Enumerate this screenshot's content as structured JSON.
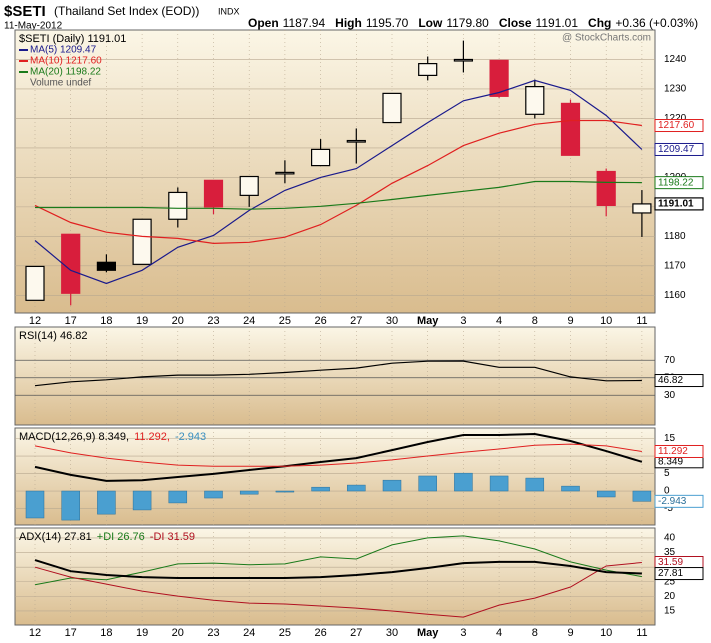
{
  "header": {
    "symbol": "$SETI",
    "title": "(Thailand Set Index (EOD))",
    "exchange": "INDX",
    "date": "11-May-2012",
    "quote": [
      {
        "label": "Open",
        "value": "1187.94"
      },
      {
        "label": "High",
        "value": "1195.70"
      },
      {
        "label": "Low",
        "value": "1179.80"
      },
      {
        "label": "Close",
        "value": "1191.01"
      },
      {
        "label": "Chg",
        "value": "+0.36 (+0.03%)"
      }
    ],
    "watermark": "@ StockCharts.com"
  },
  "categories": [
    "12",
    "17",
    "18",
    "19",
    "20",
    "23",
    "24",
    "25",
    "26",
    "27",
    "30",
    "May",
    "3",
    "4",
    "8",
    "9",
    "10",
    "11"
  ],
  "chart_data": [
    {
      "type": "candlestick",
      "legend_title": "$SETI (Daily) 1191.01",
      "volume_label": "Volume undef",
      "close_label": "1191.01",
      "up_color": "#000000",
      "down_color": "#d81e3c",
      "open": [
        1158.3,
        1180.7,
        1171.2,
        1170.5,
        1185.8,
        1199.0,
        1193.9,
        1201.7,
        1204.0,
        1212.5,
        1218.6,
        1234.6,
        1240.0,
        1239.7,
        1221.4,
        1225.1,
        1202.0,
        1187.94
      ],
      "high": [
        1169.8,
        1180.7,
        1173.9,
        1185.8,
        1196.6,
        1199.0,
        1200.3,
        1205.8,
        1213.0,
        1216.6,
        1228.5,
        1241.0,
        1246.4,
        1239.7,
        1233.2,
        1226.4,
        1203.0,
        1195.7
      ],
      "low": [
        1158.3,
        1156.6,
        1167.8,
        1170.5,
        1183.0,
        1187.5,
        1190.0,
        1198.0,
        1204.0,
        1204.7,
        1218.6,
        1232.9,
        1235.6,
        1227.0,
        1220.0,
        1207.5,
        1186.8,
        1179.8
      ],
      "close": [
        1169.8,
        1160.7,
        1168.5,
        1185.8,
        1194.9,
        1190.0,
        1200.3,
        1201.7,
        1209.5,
        1212.5,
        1228.5,
        1238.6,
        1240.0,
        1227.5,
        1230.8,
        1207.5,
        1190.5,
        1191.01
      ],
      "series": [
        {
          "name": "MA(5) 1209.47",
          "color": "#1a1a8c",
          "end_label": "1209.47",
          "values": [
            1178.6,
            1168.5,
            1164.0,
            1168.5,
            1176.3,
            1180.3,
            1188.8,
            1195.6,
            1200.0,
            1203.0,
            1210.8,
            1218.6,
            1226.0,
            1228.8,
            1232.9,
            1229.5,
            1221.0,
            1209.47
          ]
        },
        {
          "name": "MA(10) 1217.60",
          "color": "#e02020",
          "end_label": "1217.60",
          "values": [
            1190.5,
            1184.7,
            1181.4,
            1180.0,
            1179.3,
            1177.6,
            1178.0,
            1179.7,
            1184.0,
            1190.5,
            1198.0,
            1204.0,
            1210.8,
            1215.0,
            1218.0,
            1219.3,
            1219.3,
            1217.6
          ]
        },
        {
          "name": "MA(20) 1198.22",
          "color": "#1a7a1a",
          "end_label": "1198.22",
          "values": [
            1189.8,
            1189.8,
            1189.8,
            1189.8,
            1189.5,
            1189.5,
            1189.2,
            1189.5,
            1190.2,
            1191.2,
            1192.5,
            1193.9,
            1195.3,
            1196.6,
            1198.6,
            1198.6,
            1198.3,
            1198.22
          ]
        }
      ],
      "ylim": [
        1154,
        1250
      ],
      "yticks": [
        1160,
        1170,
        1180,
        1190,
        1200,
        1210,
        1220,
        1230,
        1240
      ],
      "grid": true
    },
    {
      "type": "line",
      "legend": [
        {
          "text": "RSI(14) 46.82",
          "color": "#000000"
        }
      ],
      "series": [
        {
          "name": "RSI(14)",
          "color": "#000000",
          "end_label": "46.82",
          "values": [
            40.9,
            45.4,
            47.7,
            51.0,
            53.0,
            53.0,
            54.0,
            56.0,
            58.6,
            61.0,
            66.6,
            68.9,
            69.0,
            62.0,
            62.0,
            51.0,
            46.5,
            46.82
          ]
        }
      ],
      "ylim": [
        -4,
        108
      ],
      "yticks": [
        30,
        50,
        70
      ],
      "grid": true
    },
    {
      "type": "line",
      "legend": [
        {
          "text": "MACD(12,26,9) 8.349,",
          "color": "#000000"
        },
        {
          "text": "11.292,",
          "color": "#e02020"
        },
        {
          "text": "-2.943",
          "color": "#3a8fc0"
        }
      ],
      "series": [
        {
          "name": "MACD",
          "color": "#000000",
          "end_label": "8.349",
          "width": 2,
          "values": [
            6.9,
            4.6,
            2.9,
            3.1,
            4.0,
            4.9,
            6.0,
            7.1,
            8.3,
            9.4,
            11.7,
            14.0,
            16.0,
            16.0,
            16.3,
            14.3,
            11.4,
            8.349
          ]
        },
        {
          "name": "Signal",
          "color": "#e02020",
          "end_label": "11.292",
          "width": 1,
          "values": [
            12.9,
            10.9,
            9.4,
            8.3,
            7.4,
            7.1,
            7.1,
            7.1,
            7.4,
            8.0,
            8.9,
            10.0,
            11.1,
            12.0,
            13.1,
            13.4,
            12.9,
            11.292
          ]
        },
        {
          "name": "Histogram",
          "color": "#4a9fd0",
          "end_label": "-2.943",
          "style": "bar",
          "values": [
            -7.7,
            -8.3,
            -6.6,
            -5.4,
            -3.4,
            -2.0,
            -0.9,
            -0.3,
            1.1,
            1.7,
            3.1,
            4.3,
            5.1,
            4.3,
            3.7,
            1.4,
            -1.7,
            -2.943
          ]
        }
      ],
      "ylim": [
        -9.7,
        18
      ],
      "yticks": [
        -5,
        0,
        5,
        10,
        15
      ],
      "grid": true
    },
    {
      "type": "line",
      "legend": [
        {
          "text": "ADX(14) 27.81",
          "color": "#000000"
        },
        {
          "text": "+DI 26.76",
          "color": "#1a7a1a"
        },
        {
          "text": "-DI 31.59",
          "color": "#b01020"
        }
      ],
      "series": [
        {
          "name": "+DI",
          "color": "#1a7a1a",
          "width": 1,
          "values": [
            24.0,
            26.3,
            25.7,
            28.3,
            31.1,
            31.4,
            30.8,
            31.1,
            33.5,
            32.8,
            37.6,
            40.0,
            40.7,
            39.0,
            36.2,
            31.8,
            29.0,
            26.76
          ]
        },
        {
          "name": "-DI",
          "color": "#b01020",
          "end_label": "31.59",
          "width": 1,
          "values": [
            30.0,
            26.6,
            24.2,
            21.8,
            20.1,
            18.7,
            17.7,
            17.4,
            16.7,
            16.0,
            15.0,
            13.9,
            12.9,
            17.0,
            19.4,
            23.2,
            30.4,
            31.59
          ]
        },
        {
          "name": "ADX",
          "color": "#000000",
          "end_label": "27.81",
          "width": 2,
          "values": [
            32.4,
            28.6,
            27.3,
            26.6,
            26.3,
            26.3,
            26.3,
            26.3,
            26.6,
            27.3,
            28.3,
            29.7,
            31.4,
            31.8,
            31.8,
            30.4,
            28.3,
            27.81
          ]
        }
      ],
      "ylim": [
        10.2,
        43.4
      ],
      "yticks": [
        15,
        20,
        25,
        30,
        35,
        40
      ],
      "grid": true
    }
  ]
}
